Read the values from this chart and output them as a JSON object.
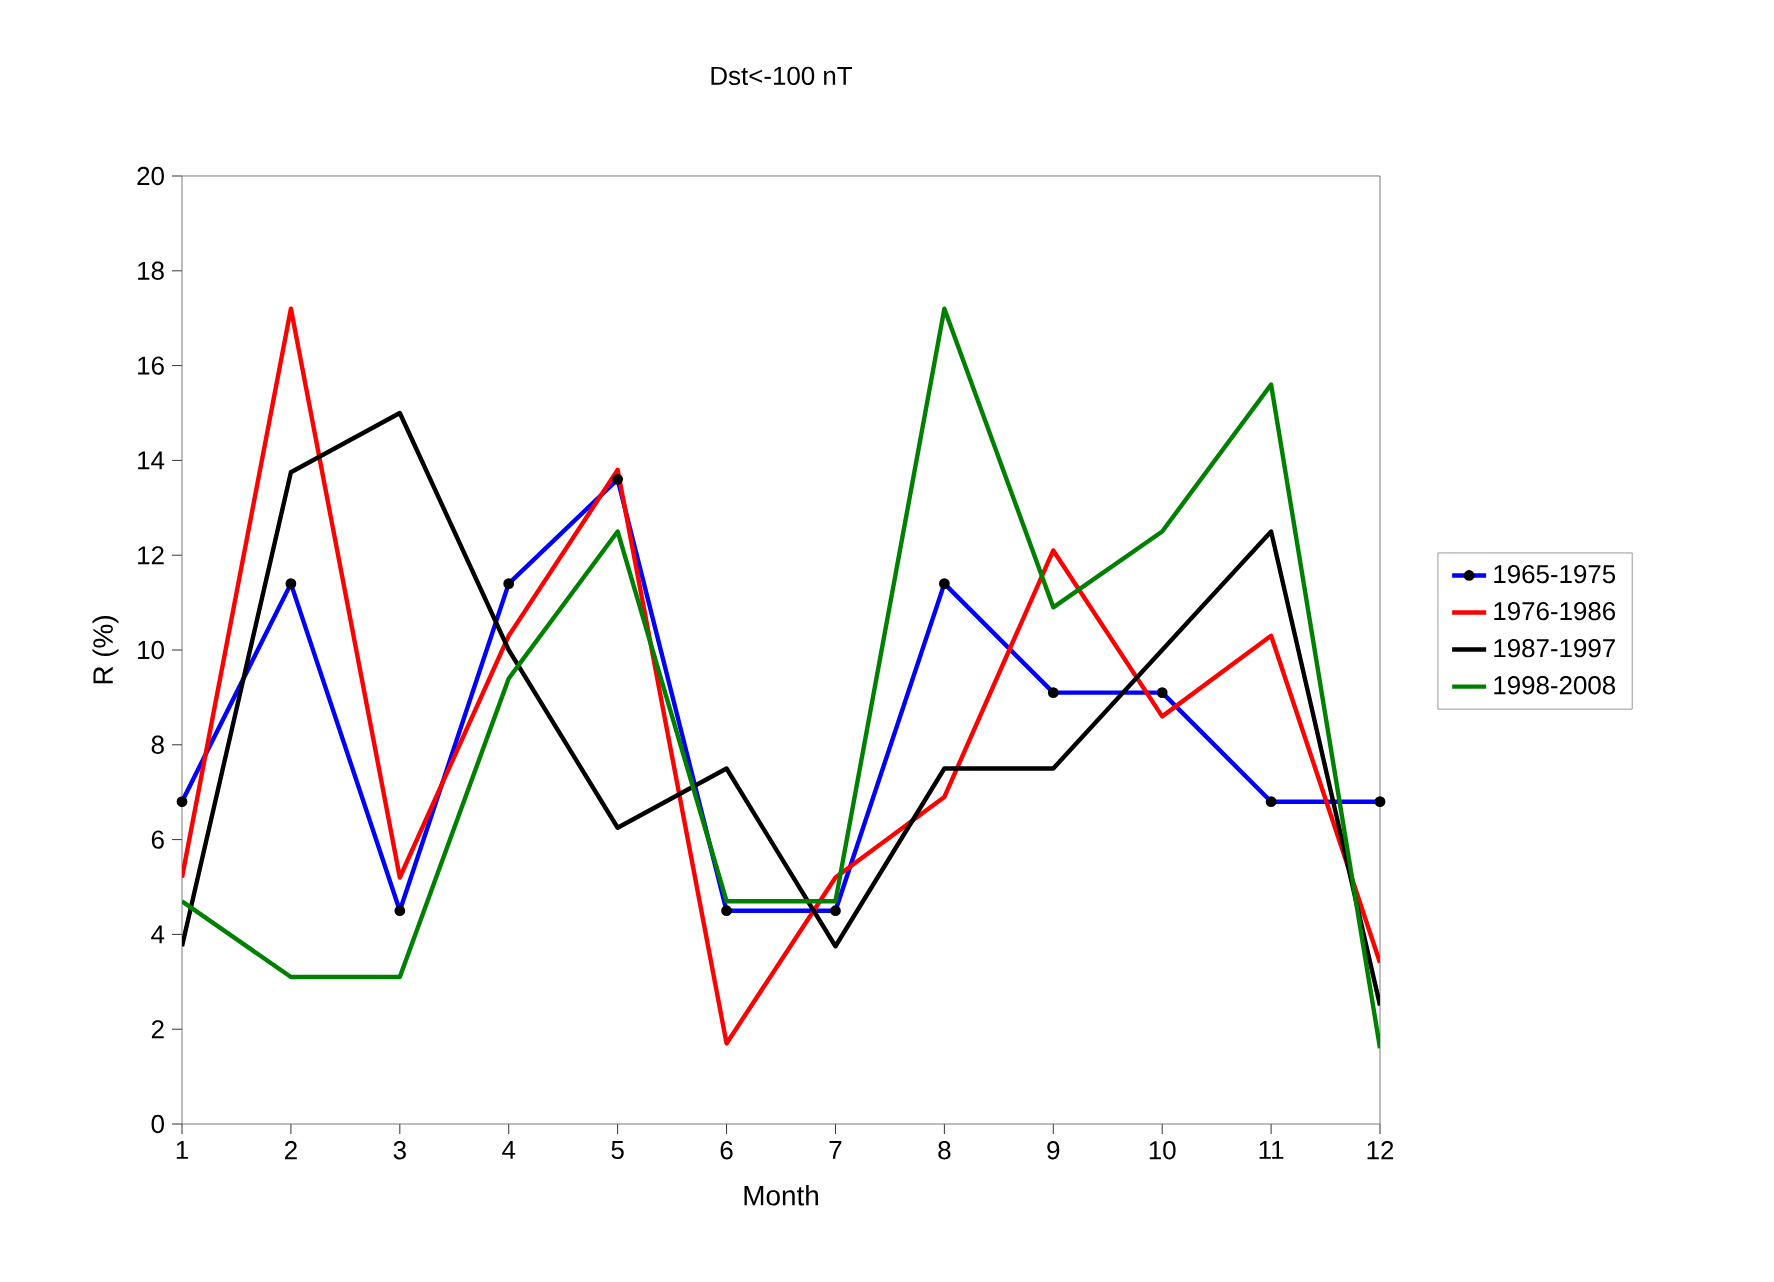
{
  "chart_data": {
    "type": "line",
    "title": "Dst<-100 nT",
    "xlabel": "Month",
    "ylabel": "R (%)",
    "x": [
      1,
      2,
      3,
      4,
      5,
      6,
      7,
      8,
      9,
      10,
      11,
      12
    ],
    "xlim": [
      1,
      12
    ],
    "xticks": [
      1,
      2,
      3,
      4,
      5,
      6,
      7,
      8,
      9,
      10,
      11,
      12
    ],
    "ylim": [
      0,
      20
    ],
    "yticks": [
      0,
      2,
      4,
      6,
      8,
      10,
      12,
      14,
      16,
      18,
      20
    ],
    "grid": false,
    "legend": "right",
    "line_style": "solid",
    "series": [
      {
        "name": "1965-1975",
        "color": "#0000ff",
        "marker": "circle",
        "values": [
          6.8,
          11.4,
          4.5,
          11.4,
          13.6,
          4.5,
          4.5,
          11.4,
          9.1,
          9.1,
          6.8,
          6.8
        ]
      },
      {
        "name": "1976-1986",
        "color": "#ff0000",
        "marker": "none",
        "values": [
          5.2,
          17.2,
          5.2,
          10.3,
          13.8,
          1.7,
          5.2,
          6.9,
          12.1,
          8.6,
          10.3,
          3.4
        ]
      },
      {
        "name": "1987-1997",
        "color": "#000000",
        "marker": "none",
        "values": [
          3.75,
          13.75,
          15,
          10,
          6.25,
          7.5,
          3.75,
          7.5,
          7.5,
          10,
          12.5,
          2.5
        ]
      },
      {
        "name": "1998-2008",
        "color": "#008000",
        "marker": "none",
        "values": [
          4.7,
          3.1,
          3.1,
          9.4,
          12.5,
          4.7,
          4.7,
          17.2,
          10.9,
          12.5,
          15.6,
          1.6
        ]
      }
    ]
  }
}
